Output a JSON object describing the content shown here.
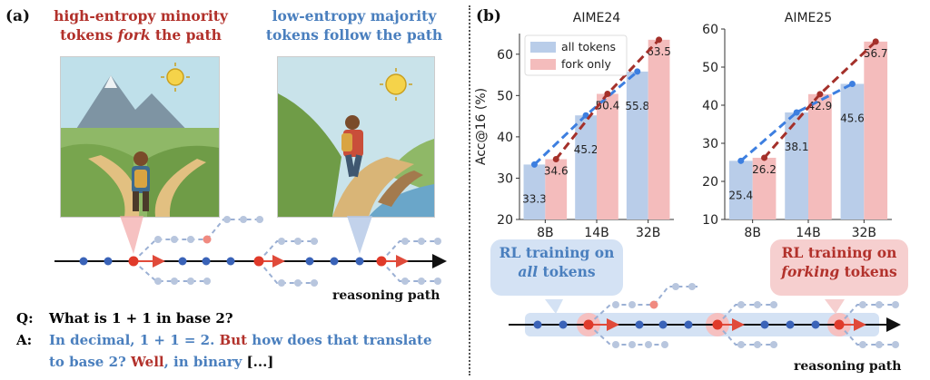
{
  "panel_a": {
    "label": "(a)",
    "left_heading": {
      "line1": "high-entropy minority",
      "line2_pre": "tokens ",
      "line2_em": "fork",
      "line2_post": " the path"
    },
    "right_heading": {
      "line1": "low-entropy majority",
      "line2": "tokens follow the path"
    },
    "axis_label": "reasoning path",
    "question": {
      "prefix": "Q:",
      "text": "What is 1 + 1 in base 2?"
    },
    "answer": {
      "prefix": "A:",
      "part1": "In decimal, 1 + 1 = 2.",
      "part2": " But",
      "part3": " how does that translate",
      "part4": "to base 2?",
      "part5": " Well",
      "part6": ", in binary",
      "part7": " [...]"
    }
  },
  "panel_b": {
    "label": "(b)",
    "left_callout": {
      "line1": "RL training on",
      "line2": "all",
      "line2_post": " tokens"
    },
    "right_callout": {
      "line1": "RL training on",
      "line2": "forking",
      "line2_post": " tokens"
    },
    "axis_label": "reasoning path"
  },
  "colors": {
    "red": "#b2312b",
    "blue": "#4a7fbe",
    "bar_blue": "#b9cde9",
    "bar_red": "#f4bcbc"
  },
  "chart_data": [
    {
      "type": "bar",
      "title": "AIME24",
      "ylabel": "Acc@16 (%)",
      "categories": [
        "8B",
        "14B",
        "32B"
      ],
      "ylim": [
        20,
        65
      ],
      "yticks": [
        20,
        30,
        40,
        50,
        60
      ],
      "legend_position": "top-left",
      "series": [
        {
          "name": "all tokens",
          "values": [
            33.3,
            45.2,
            55.8
          ]
        },
        {
          "name": "fork only",
          "values": [
            34.6,
            50.4,
            63.5
          ]
        }
      ]
    },
    {
      "type": "bar",
      "title": "AIME25",
      "ylabel": "",
      "categories": [
        "8B",
        "14B",
        "32B"
      ],
      "ylim": [
        10,
        60
      ],
      "yticks": [
        10,
        20,
        30,
        40,
        50,
        60
      ],
      "series": [
        {
          "name": "all tokens",
          "values": [
            25.4,
            38.1,
            45.6
          ]
        },
        {
          "name": "fork only",
          "values": [
            26.2,
            42.9,
            56.7
          ]
        }
      ]
    }
  ]
}
